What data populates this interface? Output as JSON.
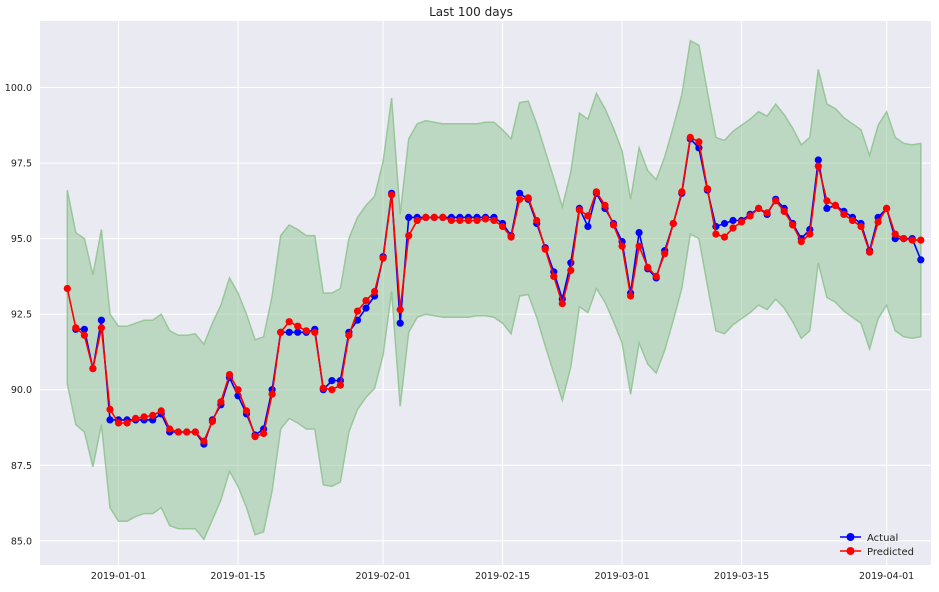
{
  "chart_data": {
    "type": "line",
    "title": "Last 100 days",
    "xlabel": "",
    "ylabel": "",
    "x_tick_labels": [
      "2019-01-01",
      "2019-01-15",
      "2019-02-01",
      "2019-02-15",
      "2019-03-01",
      "2019-03-15",
      "2019-04-01"
    ],
    "x_tick_days": [
      26,
      40,
      57,
      71,
      85,
      99,
      116
    ],
    "y_tick_labels": [
      "85.0",
      "87.5",
      "90.0",
      "92.5",
      "95.0",
      "97.5",
      "100.0"
    ],
    "y_tick_values": [
      85.0,
      87.5,
      90.0,
      92.5,
      95.0,
      97.5,
      100.0
    ],
    "xlim_days": [
      16.8,
      121.2
    ],
    "ylim": [
      84.2,
      102.2
    ],
    "grid": true,
    "legend_position": "bottom-right",
    "colors": {
      "background": "#eaeaf2",
      "grid": "#ffffff",
      "actual": "#0000ff",
      "predicted": "#ff0000",
      "band_fill": "#98c99a",
      "band_edge": "#8ec28f"
    },
    "series": [
      {
        "name": "Actual",
        "color": "#0000ff",
        "x_days": [
          21,
          22,
          23,
          24,
          25,
          26,
          27,
          28,
          29,
          30,
          31,
          32,
          33,
          34,
          35,
          36,
          37,
          38,
          39,
          40,
          41,
          42,
          43,
          44,
          45,
          46,
          47,
          48,
          49,
          50,
          51,
          52,
          53,
          54,
          55,
          56,
          57,
          58,
          59,
          60,
          61,
          62,
          63,
          64,
          65,
          66,
          67,
          68,
          69,
          70,
          71,
          72,
          73,
          74,
          75,
          76,
          77,
          78,
          79,
          80,
          81,
          82,
          83,
          84,
          85,
          86,
          87,
          88,
          89,
          90,
          91,
          92,
          93,
          94,
          95,
          96,
          97,
          98,
          99,
          100,
          101,
          102,
          103,
          104,
          105,
          106,
          107,
          108,
          109,
          110,
          111,
          112,
          113,
          114,
          115,
          116,
          117,
          118,
          119,
          120
        ],
        "values": [
          92.0,
          92.0,
          90.7,
          92.3,
          89.0,
          89.0,
          89.0,
          89.0,
          89.0,
          89.0,
          89.2,
          88.6,
          88.6,
          88.6,
          88.6,
          88.2,
          89.0,
          89.5,
          90.4,
          89.8,
          89.2,
          88.5,
          88.7,
          90.0,
          91.9,
          91.9,
          91.9,
          91.9,
          92.0,
          90.0,
          90.3,
          90.3,
          91.9,
          92.3,
          92.7,
          93.1,
          94.4,
          96.5,
          92.2,
          95.7,
          95.7,
          95.7,
          95.7,
          95.7,
          95.7,
          95.7,
          95.7,
          95.7,
          95.7,
          95.7,
          95.5,
          95.1,
          96.5,
          96.3,
          95.5,
          94.7,
          93.9,
          93.0,
          94.2,
          96.0,
          95.4,
          96.5,
          96.0,
          95.5,
          94.9,
          93.2,
          95.2,
          94.0,
          93.7,
          94.6,
          95.5,
          96.5,
          98.3,
          98.0,
          96.6,
          95.4,
          95.5,
          95.6,
          95.6,
          95.8,
          96.0,
          95.8,
          96.3,
          96.0,
          95.5,
          95.0,
          95.3,
          97.6,
          96.0,
          96.1,
          95.9,
          95.7,
          95.5,
          94.6,
          95.7,
          96.0,
          95.0,
          95.0,
          95.0,
          94.3
        ]
      },
      {
        "name": "Predicted",
        "color": "#ff0000",
        "x_days": [
          20,
          21,
          22,
          23,
          24,
          25,
          26,
          27,
          28,
          29,
          30,
          31,
          32,
          33,
          34,
          35,
          36,
          37,
          38,
          39,
          40,
          41,
          42,
          43,
          44,
          45,
          46,
          47,
          48,
          49,
          50,
          51,
          52,
          53,
          54,
          55,
          56,
          57,
          58,
          59,
          60,
          61,
          62,
          63,
          64,
          65,
          66,
          67,
          68,
          69,
          70,
          71,
          72,
          73,
          74,
          75,
          76,
          77,
          78,
          79,
          80,
          81,
          82,
          83,
          84,
          85,
          86,
          87,
          88,
          89,
          90,
          91,
          92,
          93,
          94,
          95,
          96,
          97,
          98,
          99,
          100,
          101,
          102,
          103,
          104,
          105,
          106,
          107,
          108,
          109,
          110,
          111,
          112,
          113,
          114,
          115,
          116,
          117,
          118,
          119,
          120
        ],
        "values": [
          93.35,
          92.05,
          91.8,
          90.7,
          92.05,
          89.35,
          88.9,
          88.9,
          89.05,
          89.1,
          89.15,
          89.3,
          88.7,
          88.6,
          88.6,
          88.6,
          88.3,
          88.95,
          89.6,
          90.5,
          90.0,
          89.3,
          88.45,
          88.55,
          89.85,
          91.9,
          92.25,
          92.1,
          91.95,
          91.9,
          90.05,
          90.0,
          90.15,
          91.8,
          92.6,
          92.95,
          93.25,
          94.35,
          96.45,
          92.65,
          95.1,
          95.6,
          95.7,
          95.7,
          95.7,
          95.6,
          95.6,
          95.6,
          95.6,
          95.65,
          95.6,
          95.4,
          95.05,
          96.3,
          96.35,
          95.6,
          94.65,
          93.75,
          92.85,
          93.95,
          95.95,
          95.75,
          96.55,
          96.1,
          95.45,
          94.75,
          93.1,
          94.75,
          94.05,
          93.75,
          94.5,
          95.5,
          96.55,
          98.35,
          98.2,
          96.65,
          95.15,
          95.05,
          95.35,
          95.55,
          95.75,
          96.0,
          95.85,
          96.25,
          95.9,
          95.45,
          94.9,
          95.15,
          97.4,
          96.25,
          96.1,
          95.8,
          95.6,
          95.4,
          94.55,
          95.55,
          96.0,
          95.15,
          95.0,
          94.95,
          94.95
        ]
      }
    ],
    "band": {
      "x_days": [
        20,
        21,
        22,
        23,
        24,
        25,
        26,
        27,
        28,
        29,
        30,
        31,
        32,
        33,
        34,
        35,
        36,
        37,
        38,
        39,
        40,
        41,
        42,
        43,
        44,
        45,
        46,
        47,
        48,
        49,
        50,
        51,
        52,
        53,
        54,
        55,
        56,
        57,
        58,
        59,
        60,
        61,
        62,
        63,
        64,
        65,
        66,
        67,
        68,
        69,
        70,
        71,
        72,
        73,
        74,
        75,
        76,
        77,
        78,
        79,
        80,
        81,
        82,
        83,
        84,
        85,
        86,
        87,
        88,
        89,
        90,
        91,
        92,
        93,
        94,
        95,
        96,
        97,
        98,
        99,
        100,
        101,
        102,
        103,
        104,
        105,
        106,
        107,
        108,
        109,
        110,
        111,
        112,
        113,
        114,
        115,
        116,
        117,
        118,
        119,
        120
      ],
      "upper": [
        96.6,
        95.2,
        95.0,
        93.8,
        95.3,
        92.5,
        92.1,
        92.1,
        92.2,
        92.3,
        92.3,
        92.5,
        91.95,
        91.8,
        91.8,
        91.85,
        91.5,
        92.2,
        92.8,
        93.7,
        93.2,
        92.5,
        91.65,
        91.75,
        93.1,
        95.1,
        95.45,
        95.3,
        95.1,
        95.1,
        93.2,
        93.2,
        93.35,
        95.0,
        95.7,
        96.1,
        96.4,
        97.55,
        99.65,
        95.8,
        98.3,
        98.8,
        98.9,
        98.85,
        98.8,
        98.8,
        98.8,
        98.8,
        98.8,
        98.85,
        98.85,
        98.6,
        98.3,
        99.5,
        99.55,
        98.8,
        97.9,
        97.0,
        96.05,
        97.2,
        99.15,
        98.95,
        99.8,
        99.3,
        98.65,
        97.9,
        96.3,
        98.0,
        97.25,
        96.95,
        97.7,
        98.7,
        99.75,
        101.55,
        101.4,
        99.85,
        98.35,
        98.25,
        98.55,
        98.75,
        98.95,
        99.2,
        99.05,
        99.45,
        99.1,
        98.65,
        98.1,
        98.35,
        100.6,
        99.45,
        99.3,
        99.0,
        98.8,
        98.6,
        97.75,
        98.75,
        99.2,
        98.35,
        98.15,
        98.1,
        98.15
      ],
      "lower": [
        90.2,
        88.85,
        88.6,
        87.45,
        88.85,
        86.1,
        85.65,
        85.65,
        85.8,
        85.9,
        85.9,
        86.1,
        85.5,
        85.4,
        85.4,
        85.4,
        85.05,
        85.7,
        86.35,
        87.3,
        86.8,
        86.1,
        85.2,
        85.3,
        86.65,
        88.7,
        89.05,
        88.9,
        88.7,
        88.7,
        86.85,
        86.8,
        86.95,
        88.6,
        89.35,
        89.75,
        90.05,
        91.15,
        93.25,
        89.45,
        91.9,
        92.4,
        92.5,
        92.45,
        92.4,
        92.4,
        92.4,
        92.4,
        92.45,
        92.45,
        92.4,
        92.2,
        91.85,
        93.1,
        93.15,
        92.4,
        91.45,
        90.55,
        89.65,
        90.75,
        92.75,
        92.55,
        93.35,
        92.9,
        92.25,
        91.55,
        89.85,
        91.55,
        90.85,
        90.55,
        91.3,
        92.3,
        93.35,
        95.15,
        95.0,
        93.45,
        91.95,
        91.85,
        92.15,
        92.35,
        92.55,
        92.8,
        92.65,
        93.0,
        92.7,
        92.25,
        91.7,
        91.95,
        94.2,
        93.05,
        92.9,
        92.6,
        92.4,
        92.2,
        91.35,
        92.35,
        92.8,
        91.95,
        91.75,
        91.7,
        91.75
      ]
    }
  }
}
